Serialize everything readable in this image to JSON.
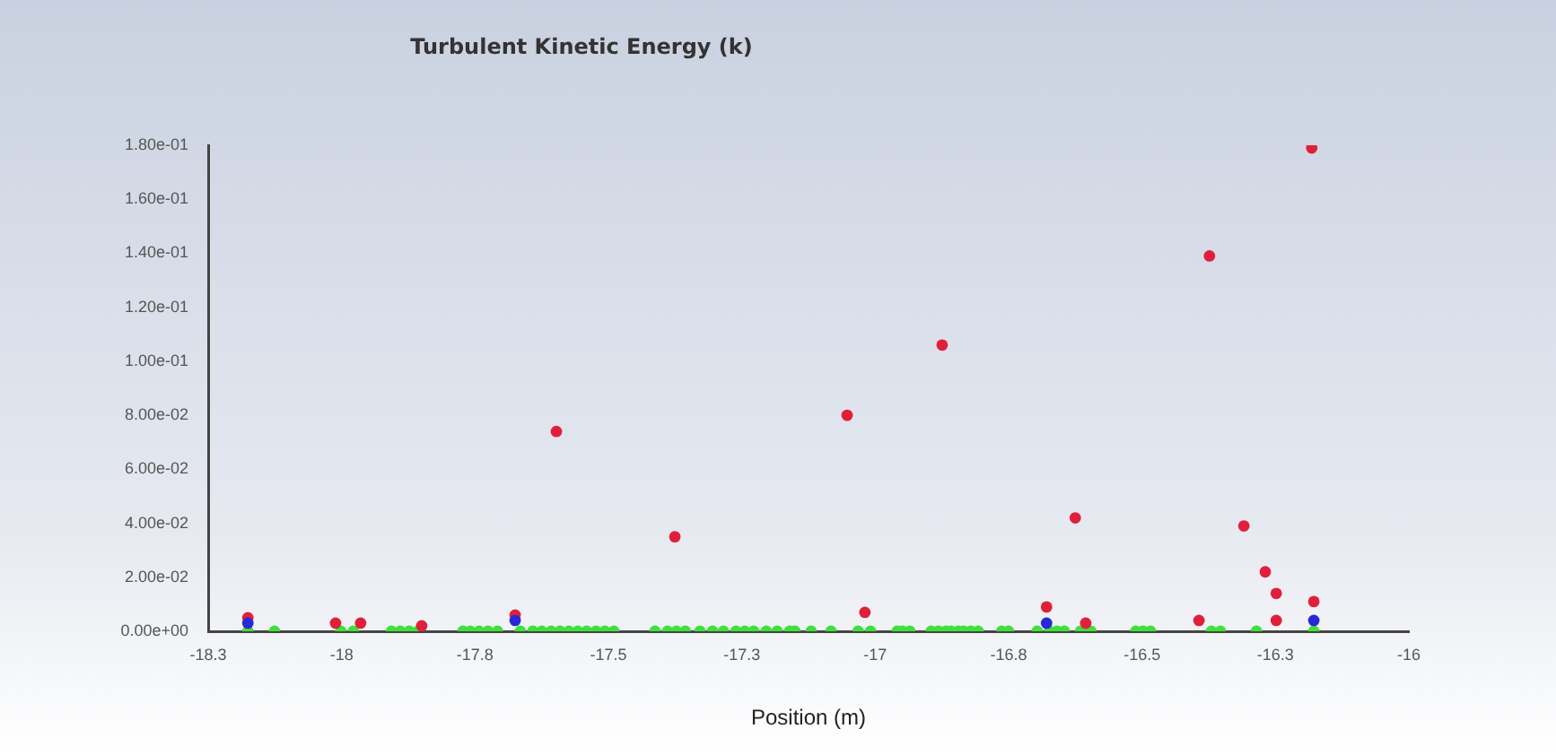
{
  "chart_data": {
    "type": "scatter",
    "title": "Turbulent Kinetic Energy (k)",
    "xlabel": "Position (m)",
    "marker": "circle",
    "xlim": [
      -18.3,
      -16
    ],
    "xticks": [
      {
        "value": -18.3,
        "label": "-18.3"
      },
      {
        "value": -18.0444,
        "label": "-18"
      },
      {
        "value": -17.7889,
        "label": "-17.8"
      },
      {
        "value": -17.5333,
        "label": "-17.5"
      },
      {
        "value": -17.2778,
        "label": "-17.3"
      },
      {
        "value": -17.0222,
        "label": "-17"
      },
      {
        "value": -16.7667,
        "label": "-16.8"
      },
      {
        "value": -16.5111,
        "label": "-16.5"
      },
      {
        "value": -16.2556,
        "label": "-16.3"
      },
      {
        "value": -16,
        "label": "-16"
      }
    ],
    "ylim": [
      0,
      0.18
    ],
    "yticks": [
      {
        "value": 0,
        "label": "0.00e+00"
      },
      {
        "value": 0.02,
        "label": "2.00e-02"
      },
      {
        "value": 0.04,
        "label": "4.00e-02"
      },
      {
        "value": 0.06,
        "label": "6.00e-02"
      },
      {
        "value": 0.08,
        "label": "8.00e-02"
      },
      {
        "value": 0.1,
        "label": "1.00e-01"
      },
      {
        "value": 0.12,
        "label": "1.20e-01"
      },
      {
        "value": 0.14,
        "label": "1.40e-01"
      },
      {
        "value": 0.16,
        "label": "1.60e-01"
      },
      {
        "value": 0.18,
        "label": "1.80e-01"
      }
    ],
    "series": [
      {
        "color": "#3ee03a",
        "x": [
          -18.224,
          -18.173,
          -18.046,
          -18.022,
          -17.949,
          -17.932,
          -17.915,
          -17.898,
          -17.812,
          -17.798,
          -17.781,
          -17.764,
          -17.746,
          -17.702,
          -17.678,
          -17.661,
          -17.643,
          -17.626,
          -17.609,
          -17.592,
          -17.575,
          -17.557,
          -17.54,
          -17.523,
          -17.444,
          -17.42,
          -17.403,
          -17.386,
          -17.358,
          -17.334,
          -17.313,
          -17.289,
          -17.272,
          -17.255,
          -17.231,
          -17.21,
          -17.186,
          -17.176,
          -17.145,
          -17.107,
          -17.055,
          -17.031,
          -16.98,
          -16.97,
          -16.956,
          -16.915,
          -16.901,
          -16.887,
          -16.877,
          -16.863,
          -16.853,
          -16.839,
          -16.825,
          -16.78,
          -16.767,
          -16.712,
          -16.688,
          -16.674,
          -16.66,
          -16.629,
          -16.609,
          -16.523,
          -16.509,
          -16.495,
          -16.378,
          -16.361,
          -16.292,
          -16.182
        ],
        "values": [
          0,
          0,
          0,
          0,
          0,
          0,
          0,
          0,
          0,
          0,
          0,
          0,
          0,
          0,
          0,
          0,
          0,
          0,
          0,
          0,
          0,
          0,
          0,
          0,
          0,
          0,
          0,
          0,
          0,
          0,
          0,
          0,
          0,
          0,
          0,
          0,
          0,
          0,
          0,
          0,
          0,
          0,
          0,
          0,
          0,
          0,
          0,
          0,
          0,
          0,
          0,
          0,
          0,
          0,
          0,
          0,
          0,
          0,
          0,
          0,
          0,
          0,
          0,
          0,
          0,
          0,
          0,
          0
        ]
      },
      {
        "color": "#e0203a",
        "x": [
          -18.224,
          -18.056,
          -18.008,
          -17.891,
          -17.712,
          -17.633,
          -17.406,
          -17.076,
          -17.042,
          -16.894,
          -16.694,
          -16.639,
          -16.619,
          -16.402,
          -16.382,
          -16.316,
          -16.275,
          -16.254,
          -16.254,
          -16.186,
          -16.182
        ],
        "values": [
          0.005,
          0.003,
          0.003,
          0.002,
          0.006,
          0.074,
          0.035,
          0.08,
          0.007,
          0.106,
          0.009,
          0.042,
          0.003,
          0.004,
          0.139,
          0.039,
          0.022,
          0.014,
          0.004,
          0.179,
          0.011
        ]
      },
      {
        "color": "#2828d8",
        "x": [
          -18.224,
          -17.712,
          -16.694,
          -16.182
        ],
        "values": [
          0.003,
          0.004,
          0.003,
          0.004
        ]
      }
    ]
  }
}
